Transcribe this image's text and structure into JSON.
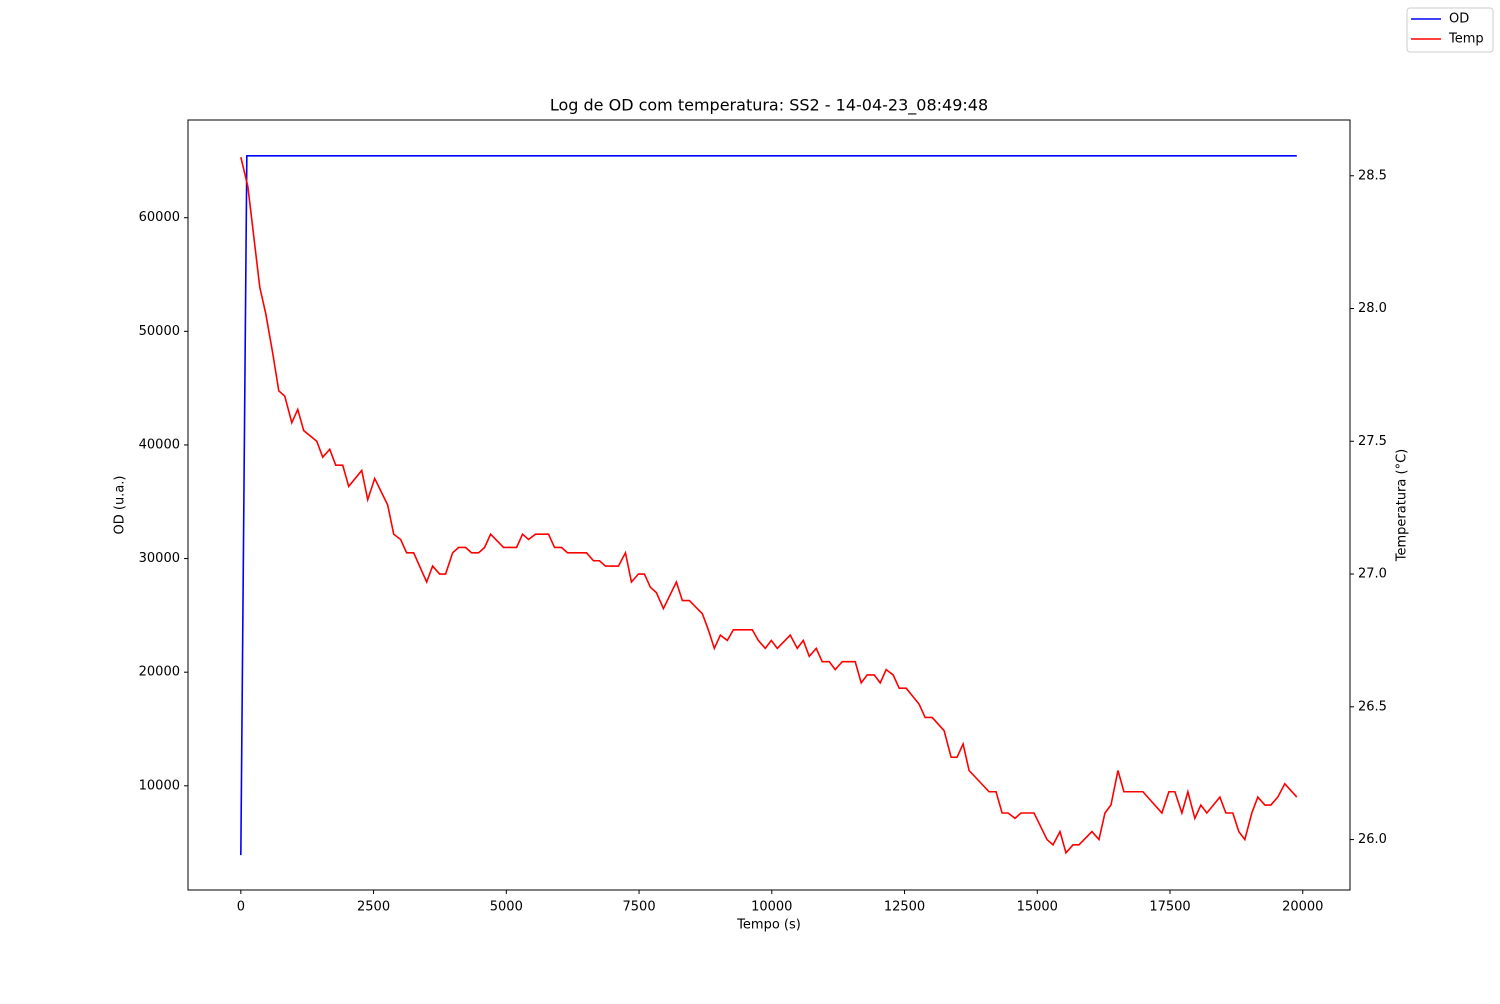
{
  "chart_data": {
    "type": "line",
    "title": "Log de OD com temperatura: SS2 - 14-04-23_08:49:48",
    "x_label": "Tempo (s)",
    "y_label": "OD (u.a.)",
    "y2_label": "Temperatura (°C)",
    "xlim": [
      -995,
      20890
    ],
    "xticks": [
      0,
      2500,
      5000,
      7500,
      10000,
      12500,
      15000,
      17500,
      20000
    ],
    "ylim": [
      830,
      68600
    ],
    "yticks": [
      10000,
      20000,
      30000,
      40000,
      50000,
      60000
    ],
    "y2lim": [
      25.81,
      28.71
    ],
    "y2ticks": [
      {
        "value": 26,
        "label": "26.0"
      },
      26.5,
      {
        "value": 27,
        "label": "27.0"
      },
      27.5,
      {
        "value": 28,
        "label": "28.0"
      },
      28.5
    ],
    "legend": "upper right",
    "series": [
      {
        "name": "OD",
        "color": "#0000ff",
        "axis": "y",
        "x": [
          0,
          113,
          19888
        ],
        "values": [
          3900,
          65450,
          65450
        ]
      },
      {
        "name": "Temp",
        "color": "#ff0000",
        "axis": "y2",
        "x": [
          0,
          132,
          357,
          470,
          602,
          715,
          828,
          960,
          1072,
          1185,
          1430,
          1543,
          1675,
          1787,
          1919,
          2032,
          2277,
          2390,
          2521,
          2766,
          2879,
          3010,
          3123,
          3255,
          3500,
          3612,
          3744,
          3857,
          3989,
          4102,
          4233,
          4346,
          4478,
          4591,
          4704,
          4948,
          5193,
          5306,
          5419,
          5550,
          5795,
          5908,
          6040,
          6153,
          6510,
          6642,
          6755,
          6867,
          7112,
          7244,
          7357,
          7488,
          7601,
          7714,
          7827,
          7959,
          8203,
          8316,
          8448,
          8693,
          8805,
          8918,
          9031,
          9163,
          9276,
          9633,
          9746,
          9878,
          9991,
          10104,
          10348,
          10480,
          10593,
          10706,
          10837,
          10950,
          11082,
          11195,
          11327,
          11571,
          11684,
          11797,
          11929,
          12042,
          12154,
          12286,
          12399,
          12531,
          12775,
          12888,
          13020,
          13246,
          13377,
          13490,
          13603,
          13716,
          14092,
          14224,
          14337,
          14450,
          14581,
          14694,
          14939,
          15184,
          15296,
          15428,
          15541,
          15673,
          15786,
          16030,
          16162,
          16275,
          16388,
          16520,
          16632,
          16990,
          17347,
          17479,
          17592,
          17724,
          17837,
          17968,
          18081,
          18194,
          18439,
          18552,
          18683,
          18796,
          18909,
          19041,
          19154,
          19286,
          19399,
          19530,
          19662,
          19888
        ],
        "values": [
          28.57,
          28.46,
          28.08,
          27.98,
          27.83,
          27.69,
          27.67,
          27.57,
          27.62,
          27.54,
          27.5,
          27.44,
          27.47,
          27.41,
          27.41,
          27.33,
          27.39,
          27.28,
          27.36,
          27.26,
          27.15,
          27.13,
          27.08,
          27.08,
          26.97,
          27.03,
          27.0,
          27.0,
          27.08,
          27.1,
          27.1,
          27.08,
          27.08,
          27.1,
          27.15,
          27.1,
          27.1,
          27.15,
          27.13,
          27.15,
          27.15,
          27.1,
          27.1,
          27.08,
          27.08,
          27.05,
          27.05,
          27.03,
          27.03,
          27.08,
          26.97,
          27.0,
          27.0,
          26.95,
          26.93,
          26.87,
          26.97,
          26.9,
          26.9,
          26.85,
          26.79,
          26.72,
          26.77,
          26.75,
          26.79,
          26.79,
          26.75,
          26.72,
          26.75,
          26.72,
          26.77,
          26.72,
          26.75,
          26.69,
          26.72,
          26.67,
          26.67,
          26.64,
          26.67,
          26.67,
          26.59,
          26.62,
          26.62,
          26.59,
          26.64,
          26.62,
          26.57,
          26.57,
          26.51,
          26.46,
          26.46,
          26.41,
          26.31,
          26.31,
          26.36,
          26.26,
          26.18,
          26.18,
          26.1,
          26.1,
          26.08,
          26.1,
          26.1,
          26.0,
          25.98,
          26.03,
          25.95,
          25.98,
          25.98,
          26.03,
          26.0,
          26.1,
          26.13,
          26.26,
          26.18,
          26.18,
          26.1,
          26.18,
          26.18,
          26.1,
          26.18,
          26.08,
          26.13,
          26.1,
          26.16,
          26.1,
          26.1,
          26.03,
          26.0,
          26.1,
          26.16,
          26.13,
          26.13,
          26.16,
          26.21,
          26.16
        ]
      }
    ]
  }
}
